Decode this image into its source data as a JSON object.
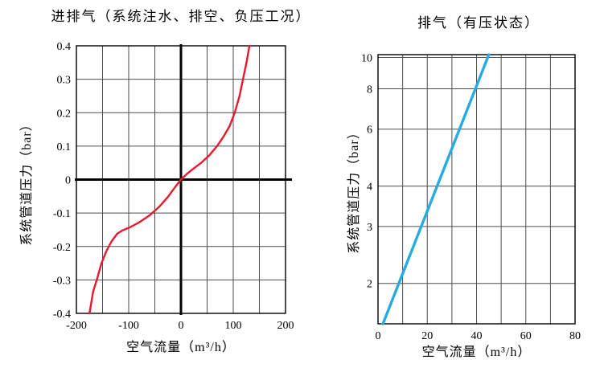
{
  "figure": {
    "background": "#ffffff",
    "text_color": "#000000"
  },
  "chart_data": [
    {
      "type": "line",
      "title": "进排气（系统注水、排空、负压工况）",
      "xlabel": "空气流量（m³/h）",
      "ylabel": "系统管道压力（bar）",
      "xlim": [
        -200,
        200
      ],
      "ylim": [
        -0.4,
        0.4
      ],
      "y_scale": "linear",
      "grid": true,
      "grid_color": "#4d4d4d",
      "axis_color": "#000000",
      "zero_axes": true,
      "x_grid_step": 50,
      "y_grid_values": [
        -0.4,
        -0.3,
        -0.2,
        -0.1,
        0,
        0.1,
        0.2,
        0.3,
        0.4
      ],
      "x_ticks": [
        {
          "v": -200,
          "label": "-200"
        },
        {
          "v": -100,
          "label": "-100"
        },
        {
          "v": 0,
          "label": "0"
        },
        {
          "v": 100,
          "label": "100"
        },
        {
          "v": 200,
          "label": "200"
        }
      ],
      "y_ticks": [
        {
          "v": 0.4,
          "label": "0.4"
        },
        {
          "v": 0.3,
          "label": "0.3"
        },
        {
          "v": 0.2,
          "label": "0.2"
        },
        {
          "v": 0.1,
          "label": "0.1"
        },
        {
          "v": 0,
          "label": "0"
        },
        {
          "v": -0.1,
          "label": "-0.1"
        },
        {
          "v": -0.2,
          "label": "-0.2"
        },
        {
          "v": -0.3,
          "label": "-0.3"
        },
        {
          "v": -0.4,
          "label": "-0.4"
        }
      ],
      "series": [
        {
          "name": "intake-exhaust-curve",
          "color": "#e8192c",
          "points": [
            [
              -175,
              -0.4
            ],
            [
              -168,
              -0.335
            ],
            [
              -161,
              -0.3
            ],
            [
              -152,
              -0.25
            ],
            [
              -143,
              -0.215
            ],
            [
              -133,
              -0.185
            ],
            [
              -122,
              -0.162
            ],
            [
              -112,
              -0.152
            ],
            [
              -98,
              -0.143
            ],
            [
              -80,
              -0.128
            ],
            [
              -60,
              -0.107
            ],
            [
              -42,
              -0.082
            ],
            [
              -25,
              -0.052
            ],
            [
              -10,
              -0.02
            ],
            [
              0,
              0
            ],
            [
              12,
              0.018
            ],
            [
              25,
              0.034
            ],
            [
              40,
              0.052
            ],
            [
              55,
              0.074
            ],
            [
              69,
              0.1
            ],
            [
              82,
              0.13
            ],
            [
              93,
              0.16
            ],
            [
              103,
              0.2
            ],
            [
              112,
              0.25
            ],
            [
              120,
              0.31
            ],
            [
              126,
              0.355
            ],
            [
              131,
              0.4
            ]
          ]
        }
      ]
    },
    {
      "type": "line",
      "title": "排气（有压状态）",
      "xlabel": "空气流量（m³/h）",
      "ylabel": "系统管道压力（bar）",
      "xlim": [
        0,
        80
      ],
      "ylim": [
        1.5,
        10.2
      ],
      "y_scale": "log",
      "grid": true,
      "grid_color": "#4d4d4d",
      "axis_color": "#000000",
      "zero_axes": false,
      "x_grid_step": 10,
      "y_grid_values": [
        2,
        3,
        4,
        6,
        8,
        10
      ],
      "x_ticks": [
        {
          "v": 0,
          "label": "0"
        },
        {
          "v": 20,
          "label": "20"
        },
        {
          "v": 40,
          "label": "40"
        },
        {
          "v": 60,
          "label": "60"
        },
        {
          "v": 80,
          "label": "80"
        }
      ],
      "y_ticks": [
        {
          "v": 10,
          "label": "10"
        },
        {
          "v": 8,
          "label": "8"
        },
        {
          "v": 6,
          "label": "6"
        },
        {
          "v": 4,
          "label": "4"
        },
        {
          "v": 3,
          "label": "3"
        },
        {
          "v": 2,
          "label": "2"
        }
      ],
      "series": [
        {
          "name": "pressurized-exhaust-line",
          "color": "#29abe2",
          "points": [
            [
              2,
              1.5
            ],
            [
              45,
              10.2
            ]
          ]
        }
      ]
    }
  ]
}
